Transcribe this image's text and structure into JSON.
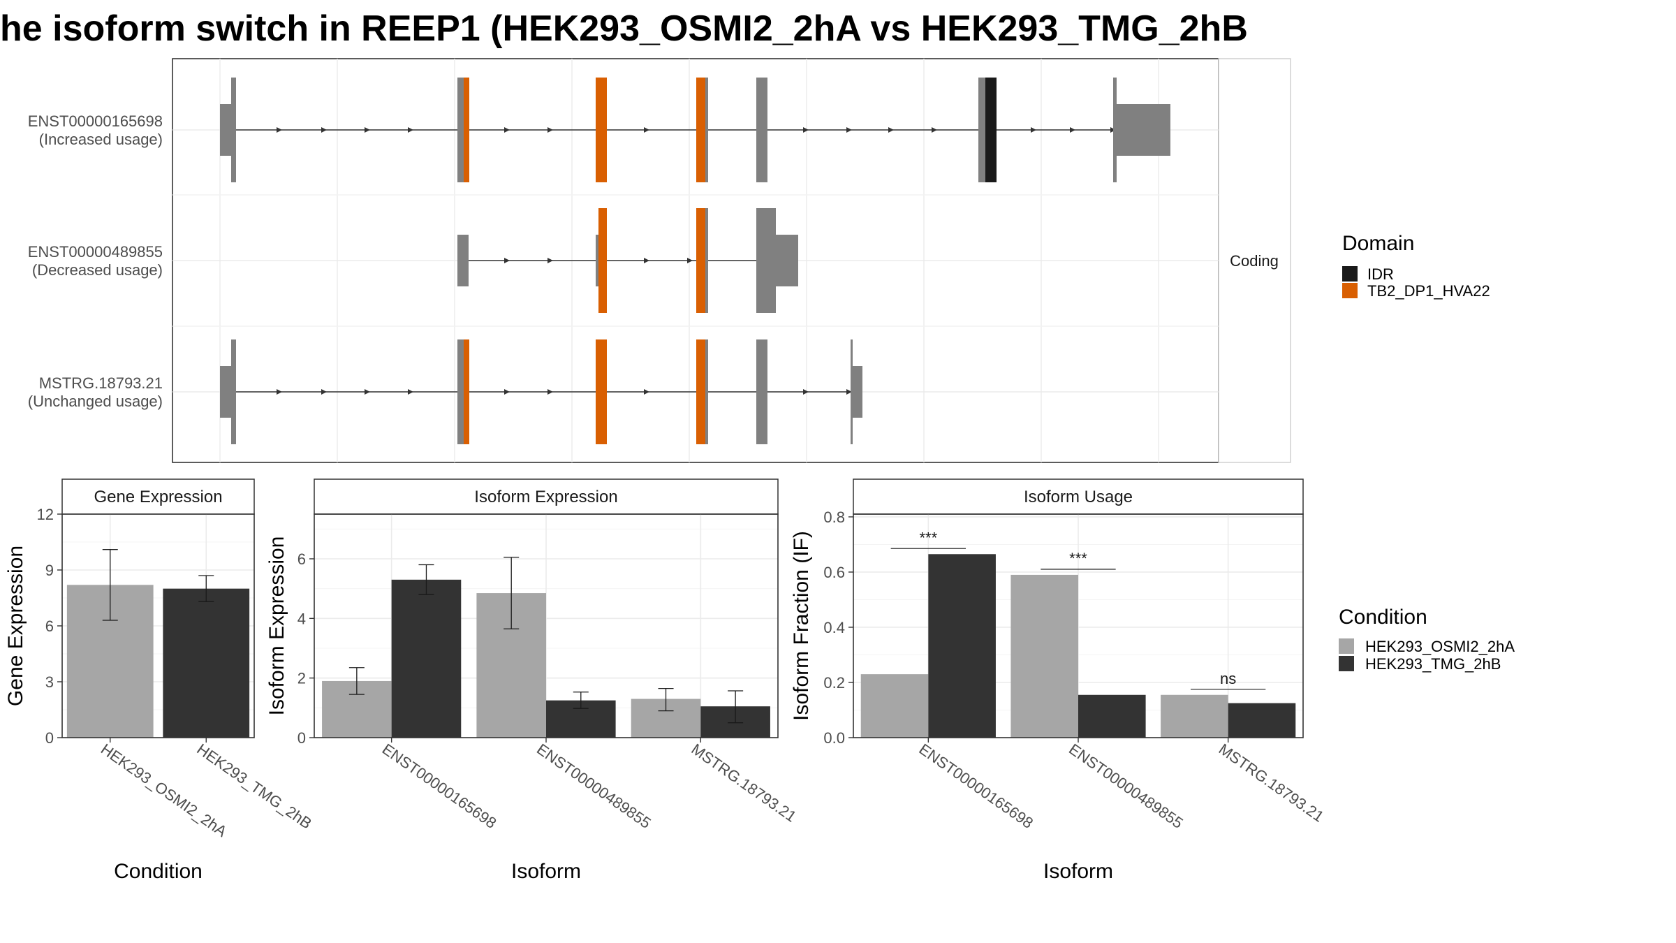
{
  "title": "he isoform switch in REEP1 (HEK293_OSMI2_2hA vs HEK293_TMG_2hB",
  "colors": {
    "exon": "#808080",
    "intron": "#333333",
    "IDR": "#1a1a1a",
    "TB2_DP1_HVA22": "#d95f02",
    "cond_A": "#a6a6a6",
    "cond_B": "#333333"
  },
  "domain_legend": {
    "title": "Domain",
    "items": [
      "IDR",
      "TB2_DP1_HVA22"
    ]
  },
  "condition_legend": {
    "title": "Condition",
    "items": [
      "HEK293_OSMI2_2hA",
      "HEK293_TMG_2hB"
    ]
  },
  "chart_data": [
    {
      "type": "table",
      "panel": "isoform structures",
      "strip_label": "Coding",
      "rows": [
        {
          "name": "ENST00000165698",
          "note": "(Increased usage)"
        },
        {
          "name": "ENST00000489855",
          "note": "(Decreased usage)"
        },
        {
          "name": "MSTRG.18793.21",
          "note": "(Unchanged usage)"
        }
      ]
    },
    {
      "type": "bar",
      "title": "Gene Expression",
      "xlabel": "Condition",
      "ylabel": "Gene Expression",
      "ylim": [
        0,
        12
      ],
      "yticks": [
        "0",
        "3",
        "6",
        "9",
        "12"
      ],
      "categories": [
        "HEK293_OSMI2_2hA",
        "HEK293_TMG_2hB"
      ],
      "values": [
        8.2,
        8.0
      ],
      "error_low": [
        6.3,
        7.3
      ],
      "error_high": [
        10.1,
        8.7
      ]
    },
    {
      "type": "bar",
      "title": "Isoform Expression",
      "xlabel": "Isoform",
      "ylabel": "Isoform Expression",
      "ylim": [
        0,
        7.5
      ],
      "yticks": [
        "0",
        "2",
        "4",
        "6"
      ],
      "categories": [
        "ENST00000165698",
        "ENST00000489855",
        "MSTRG.18793.21"
      ],
      "series": [
        {
          "name": "HEK293_OSMI2_2hA",
          "values": [
            1.9,
            4.85,
            1.3
          ],
          "error_low": [
            1.45,
            3.65,
            0.9
          ],
          "error_high": [
            2.35,
            6.05,
            1.65
          ]
        },
        {
          "name": "HEK293_TMG_2hB",
          "values": [
            5.3,
            1.25,
            1.05
          ],
          "error_low": [
            4.8,
            0.98,
            0.5
          ],
          "error_high": [
            5.8,
            1.53,
            1.57
          ]
        }
      ]
    },
    {
      "type": "bar",
      "title": "Isoform Usage",
      "xlabel": "Isoform",
      "ylabel": "Isoform Fraction (IF)",
      "ylim": [
        0,
        0.81
      ],
      "yticks": [
        "0.0",
        "0.2",
        "0.4",
        "0.6",
        "0.8"
      ],
      "categories": [
        "ENST00000165698",
        "ENST00000489855",
        "MSTRG.18793.21"
      ],
      "series": [
        {
          "name": "HEK293_OSMI2_2hA",
          "values": [
            0.23,
            0.59,
            0.155
          ]
        },
        {
          "name": "HEK293_TMG_2hB",
          "values": [
            0.665,
            0.155,
            0.125
          ]
        }
      ],
      "annotations": [
        "***",
        "***",
        "ns"
      ]
    }
  ]
}
